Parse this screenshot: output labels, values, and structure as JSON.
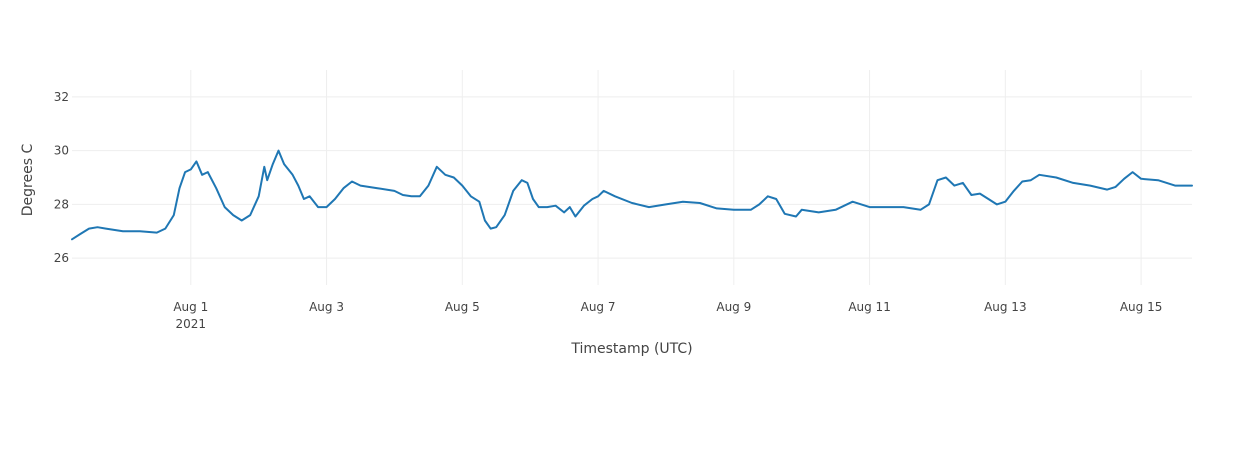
{
  "chart_data": {
    "type": "line",
    "xlabel": "Timestamp (UTC)",
    "ylabel": "Degrees C",
    "x_range": [
      "2021-07-30T06:00",
      "2021-08-15T18:00"
    ],
    "ylim": [
      25,
      33
    ],
    "y_ticks": [
      26,
      28,
      30,
      32
    ],
    "x_ticks": [
      {
        "date": "2021-08-01",
        "label": "Aug 1",
        "sublabel": "2021"
      },
      {
        "date": "2021-08-03",
        "label": "Aug 3"
      },
      {
        "date": "2021-08-05",
        "label": "Aug 5"
      },
      {
        "date": "2021-08-07",
        "label": "Aug 7"
      },
      {
        "date": "2021-08-09",
        "label": "Aug 9"
      },
      {
        "date": "2021-08-11",
        "label": "Aug 11"
      },
      {
        "date": "2021-08-13",
        "label": "Aug 13"
      },
      {
        "date": "2021-08-15",
        "label": "Aug 15"
      }
    ],
    "grid": true,
    "series": [
      {
        "color": "#1f77b4",
        "points": [
          [
            "2021-07-30T06:00",
            26.7
          ],
          [
            "2021-07-30T09:00",
            26.9
          ],
          [
            "2021-07-30T12:00",
            27.1
          ],
          [
            "2021-07-30T15:00",
            27.15
          ],
          [
            "2021-07-30T18:00",
            27.1
          ],
          [
            "2021-07-31T00:00",
            27.0
          ],
          [
            "2021-07-31T06:00",
            27.0
          ],
          [
            "2021-07-31T12:00",
            26.95
          ],
          [
            "2021-07-31T15:00",
            27.1
          ],
          [
            "2021-07-31T18:00",
            27.6
          ],
          [
            "2021-07-31T20:00",
            28.6
          ],
          [
            "2021-07-31T22:00",
            29.2
          ],
          [
            "2021-08-01T00:00",
            29.3
          ],
          [
            "2021-08-01T02:00",
            29.6
          ],
          [
            "2021-08-01T04:00",
            29.1
          ],
          [
            "2021-08-01T06:00",
            29.2
          ],
          [
            "2021-08-01T09:00",
            28.6
          ],
          [
            "2021-08-01T12:00",
            27.9
          ],
          [
            "2021-08-01T15:00",
            27.6
          ],
          [
            "2021-08-01T18:00",
            27.4
          ],
          [
            "2021-08-01T21:00",
            27.6
          ],
          [
            "2021-08-02T00:00",
            28.3
          ],
          [
            "2021-08-02T02:00",
            29.4
          ],
          [
            "2021-08-02T03:00",
            28.9
          ],
          [
            "2021-08-02T05:00",
            29.5
          ],
          [
            "2021-08-02T07:00",
            30.0
          ],
          [
            "2021-08-02T09:00",
            29.5
          ],
          [
            "2021-08-02T12:00",
            29.1
          ],
          [
            "2021-08-02T14:00",
            28.7
          ],
          [
            "2021-08-02T16:00",
            28.2
          ],
          [
            "2021-08-02T18:00",
            28.3
          ],
          [
            "2021-08-02T21:00",
            27.9
          ],
          [
            "2021-08-03T00:00",
            27.9
          ],
          [
            "2021-08-03T03:00",
            28.2
          ],
          [
            "2021-08-03T06:00",
            28.6
          ],
          [
            "2021-08-03T09:00",
            28.85
          ],
          [
            "2021-08-03T12:00",
            28.7
          ],
          [
            "2021-08-03T18:00",
            28.6
          ],
          [
            "2021-08-04T00:00",
            28.5
          ],
          [
            "2021-08-04T03:00",
            28.35
          ],
          [
            "2021-08-04T06:00",
            28.3
          ],
          [
            "2021-08-04T09:00",
            28.3
          ],
          [
            "2021-08-04T12:00",
            28.7
          ],
          [
            "2021-08-04T15:00",
            29.4
          ],
          [
            "2021-08-04T18:00",
            29.1
          ],
          [
            "2021-08-04T21:00",
            29.0
          ],
          [
            "2021-08-05T00:00",
            28.7
          ],
          [
            "2021-08-05T03:00",
            28.3
          ],
          [
            "2021-08-05T06:00",
            28.1
          ],
          [
            "2021-08-05T08:00",
            27.4
          ],
          [
            "2021-08-05T10:00",
            27.1
          ],
          [
            "2021-08-05T12:00",
            27.15
          ],
          [
            "2021-08-05T15:00",
            27.6
          ],
          [
            "2021-08-05T18:00",
            28.5
          ],
          [
            "2021-08-05T21:00",
            28.9
          ],
          [
            "2021-08-05T23:00",
            28.8
          ],
          [
            "2021-08-06T01:00",
            28.2
          ],
          [
            "2021-08-06T03:00",
            27.9
          ],
          [
            "2021-08-06T06:00",
            27.9
          ],
          [
            "2021-08-06T09:00",
            27.95
          ],
          [
            "2021-08-06T12:00",
            27.7
          ],
          [
            "2021-08-06T14:00",
            27.9
          ],
          [
            "2021-08-06T16:00",
            27.55
          ],
          [
            "2021-08-06T19:00",
            27.95
          ],
          [
            "2021-08-06T22:00",
            28.2
          ],
          [
            "2021-08-07T00:00",
            28.3
          ],
          [
            "2021-08-07T02:00",
            28.5
          ],
          [
            "2021-08-07T06:00",
            28.3
          ],
          [
            "2021-08-07T12:00",
            28.05
          ],
          [
            "2021-08-07T18:00",
            27.9
          ],
          [
            "2021-08-08T00:00",
            28.0
          ],
          [
            "2021-08-08T06:00",
            28.1
          ],
          [
            "2021-08-08T12:00",
            28.05
          ],
          [
            "2021-08-08T18:00",
            27.85
          ],
          [
            "2021-08-09T00:00",
            27.8
          ],
          [
            "2021-08-09T06:00",
            27.8
          ],
          [
            "2021-08-09T09:00",
            28.0
          ],
          [
            "2021-08-09T12:00",
            28.3
          ],
          [
            "2021-08-09T15:00",
            28.2
          ],
          [
            "2021-08-09T18:00",
            27.65
          ],
          [
            "2021-08-09T22:00",
            27.55
          ],
          [
            "2021-08-10T00:00",
            27.8
          ],
          [
            "2021-08-10T06:00",
            27.7
          ],
          [
            "2021-08-10T12:00",
            27.8
          ],
          [
            "2021-08-10T18:00",
            28.1
          ],
          [
            "2021-08-11T00:00",
            27.9
          ],
          [
            "2021-08-11T06:00",
            27.9
          ],
          [
            "2021-08-11T12:00",
            27.9
          ],
          [
            "2021-08-11T18:00",
            27.8
          ],
          [
            "2021-08-11T21:00",
            28.0
          ],
          [
            "2021-08-12T00:00",
            28.9
          ],
          [
            "2021-08-12T03:00",
            29.0
          ],
          [
            "2021-08-12T06:00",
            28.7
          ],
          [
            "2021-08-12T09:00",
            28.8
          ],
          [
            "2021-08-12T12:00",
            28.35
          ],
          [
            "2021-08-12T15:00",
            28.4
          ],
          [
            "2021-08-12T18:00",
            28.2
          ],
          [
            "2021-08-12T21:00",
            28.0
          ],
          [
            "2021-08-13T00:00",
            28.1
          ],
          [
            "2021-08-13T03:00",
            28.5
          ],
          [
            "2021-08-13T06:00",
            28.85
          ],
          [
            "2021-08-13T09:00",
            28.9
          ],
          [
            "2021-08-13T12:00",
            29.1
          ],
          [
            "2021-08-13T18:00",
            29.0
          ],
          [
            "2021-08-14T00:00",
            28.8
          ],
          [
            "2021-08-14T06:00",
            28.7
          ],
          [
            "2021-08-14T12:00",
            28.55
          ],
          [
            "2021-08-14T15:00",
            28.65
          ],
          [
            "2021-08-14T18:00",
            28.95
          ],
          [
            "2021-08-14T21:00",
            29.2
          ],
          [
            "2021-08-15T00:00",
            28.95
          ],
          [
            "2021-08-15T06:00",
            28.9
          ],
          [
            "2021-08-15T12:00",
            28.7
          ],
          [
            "2021-08-15T18:00",
            28.7
          ]
        ]
      }
    ]
  }
}
